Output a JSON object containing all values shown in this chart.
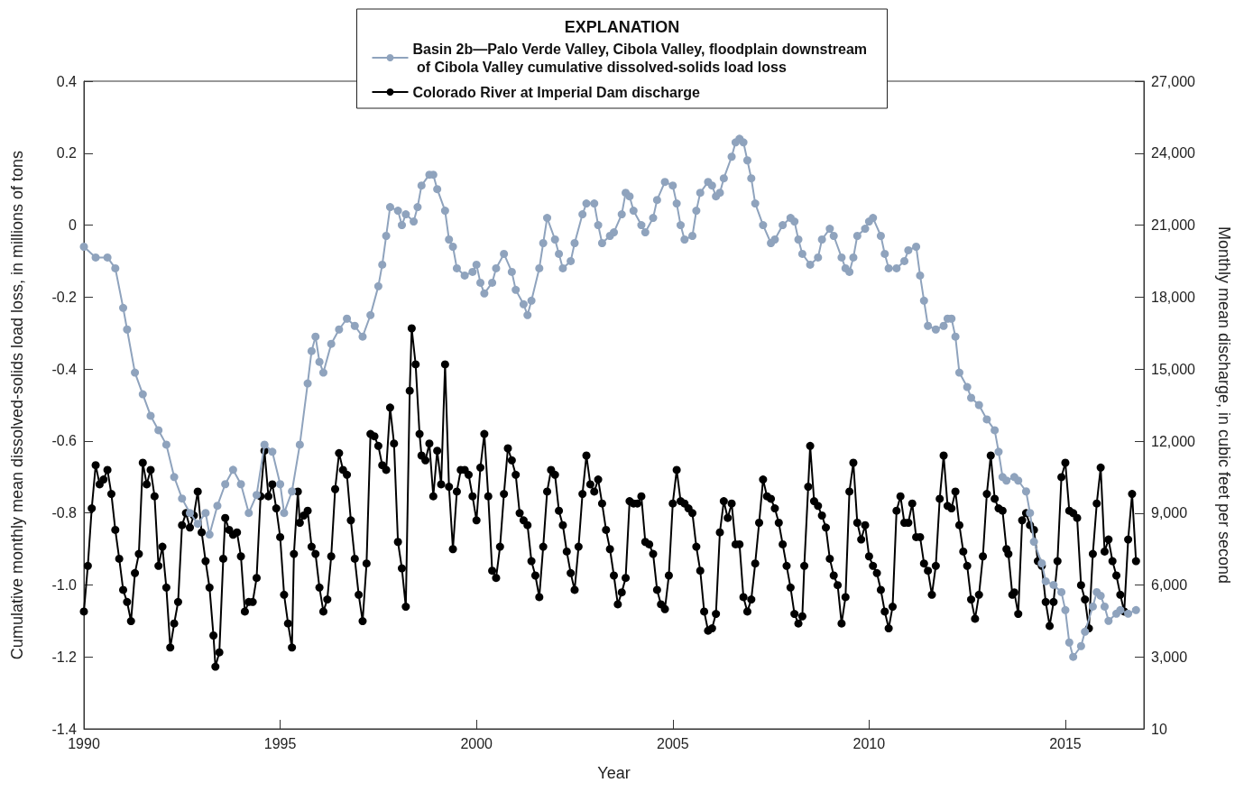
{
  "chart_data": {
    "type": "line",
    "xlabel": "Year",
    "ylabel": "Cumulative monthly mean dissolved-solids load loss, in millions of tons",
    "y2label": "Monthly mean discharge, in cubic feet per second",
    "legend_title": "EXPLANATION",
    "legend": "top",
    "grid": false,
    "marker": "circle",
    "line_style": "solid",
    "xlim": [
      1990,
      2017
    ],
    "xticks": [
      1990,
      1995,
      2000,
      2005,
      2010,
      2015
    ],
    "ylim": [
      -1.4,
      0.4
    ],
    "yticks": [
      -1.4,
      -1.2,
      {
        "value": -1,
        "label": "-1.0"
      },
      -0.8,
      -0.6,
      -0.4,
      -0.2,
      0,
      0.2,
      0.4
    ],
    "y2lim": [
      10,
      27000
    ],
    "y2ticks": [
      10,
      {
        "value": 3000,
        "label": "3,000"
      },
      {
        "value": 6000,
        "label": "6,000"
      },
      {
        "value": 9000,
        "label": "9,000"
      },
      {
        "value": 12000,
        "label": "12,000"
      },
      {
        "value": 15000,
        "label": "15,000"
      },
      {
        "value": 18000,
        "label": "18,000"
      },
      {
        "value": 21000,
        "label": "21,000"
      },
      {
        "value": 24000,
        "label": "24,000"
      },
      {
        "value": 27000,
        "label": "27,000"
      }
    ],
    "series": [
      {
        "name": "Basin 2b—Palo Verde Valley, Cibola Valley, floodplain downstream of Cibola Valley cumulative dissolved-solids load loss",
        "color": "#8fa3bd",
        "x": [
          1990.0,
          1990.3,
          1990.6,
          1990.8,
          1991.0,
          1991.1,
          1991.3,
          1991.5,
          1991.7,
          1991.9,
          1992.1,
          1992.3,
          1992.5,
          1992.7,
          1992.9,
          1993.1,
          1993.2,
          1993.4,
          1993.6,
          1993.8,
          1994.0,
          1994.2,
          1994.4,
          1994.6,
          1994.8,
          1995.0,
          1995.1,
          1995.3,
          1995.5,
          1995.7,
          1995.8,
          1995.9,
          1996.0,
          1996.1,
          1996.3,
          1996.5,
          1996.7,
          1996.9,
          1997.1,
          1997.3,
          1997.5,
          1997.6,
          1997.7,
          1997.8,
          1998.0,
          1998.1,
          1998.2,
          1998.4,
          1998.5,
          1998.6,
          1998.8,
          1998.9,
          1999.0,
          1999.2,
          1999.3,
          1999.4,
          1999.5,
          1999.7,
          1999.9,
          2000.0,
          2000.1,
          2000.2,
          2000.4,
          2000.5,
          2000.7,
          2000.9,
          2001.0,
          2001.2,
          2001.3,
          2001.4,
          2001.6,
          2001.7,
          2001.8,
          2002.0,
          2002.1,
          2002.2,
          2002.4,
          2002.5,
          2002.7,
          2002.8,
          2003.0,
          2003.1,
          2003.2,
          2003.4,
          2003.5,
          2003.7,
          2003.8,
          2003.9,
          2004.0,
          2004.2,
          2004.3,
          2004.5,
          2004.6,
          2004.8,
          2005.0,
          2005.1,
          2005.2,
          2005.3,
          2005.5,
          2005.6,
          2005.7,
          2005.9,
          2006.0,
          2006.1,
          2006.2,
          2006.3,
          2006.5,
          2006.6,
          2006.7,
          2006.8,
          2006.9,
          2007.0,
          2007.1,
          2007.3,
          2007.5,
          2007.6,
          2007.8,
          2008.0,
          2008.1,
          2008.2,
          2008.3,
          2008.5,
          2008.7,
          2008.8,
          2009.0,
          2009.1,
          2009.3,
          2009.4,
          2009.5,
          2009.6,
          2009.7,
          2009.9,
          2010.0,
          2010.1,
          2010.3,
          2010.4,
          2010.5,
          2010.7,
          2010.9,
          2011.0,
          2011.2,
          2011.3,
          2011.4,
          2011.5,
          2011.7,
          2011.9,
          2012.0,
          2012.1,
          2012.2,
          2012.3,
          2012.5,
          2012.6,
          2012.8,
          2013.0,
          2013.2,
          2013.3,
          2013.4,
          2013.5,
          2013.7,
          2013.8,
          2014.0,
          2014.1,
          2014.2,
          2014.4,
          2014.5,
          2014.7,
          2014.9,
          2015.0,
          2015.1,
          2015.2,
          2015.4,
          2015.5,
          2015.7,
          2015.8,
          2015.9,
          2016.0,
          2016.1,
          2016.3,
          2016.4,
          2016.6,
          2016.8
        ],
        "values": [
          -0.06,
          -0.09,
          -0.09,
          -0.12,
          -0.23,
          -0.29,
          -0.41,
          -0.47,
          -0.53,
          -0.57,
          -0.61,
          -0.7,
          -0.76,
          -0.8,
          -0.83,
          -0.8,
          -0.86,
          -0.78,
          -0.72,
          -0.68,
          -0.72,
          -0.8,
          -0.75,
          -0.61,
          -0.63,
          -0.72,
          -0.8,
          -0.74,
          -0.61,
          -0.44,
          -0.35,
          -0.31,
          -0.38,
          -0.41,
          -0.33,
          -0.29,
          -0.26,
          -0.28,
          -0.31,
          -0.25,
          -0.17,
          -0.11,
          -0.03,
          0.05,
          0.04,
          0.0,
          0.03,
          0.01,
          0.05,
          0.11,
          0.14,
          0.14,
          0.1,
          0.04,
          -0.04,
          -0.06,
          -0.12,
          -0.14,
          -0.13,
          -0.11,
          -0.16,
          -0.19,
          -0.16,
          -0.12,
          -0.08,
          -0.13,
          -0.18,
          -0.22,
          -0.25,
          -0.21,
          -0.12,
          -0.05,
          0.02,
          -0.04,
          -0.08,
          -0.12,
          -0.1,
          -0.05,
          0.03,
          0.06,
          0.06,
          0.0,
          -0.05,
          -0.03,
          -0.02,
          0.03,
          0.09,
          0.08,
          0.04,
          0.0,
          -0.02,
          0.02,
          0.07,
          0.12,
          0.11,
          0.06,
          0.0,
          -0.04,
          -0.03,
          0.04,
          0.09,
          0.12,
          0.11,
          0.08,
          0.09,
          0.13,
          0.19,
          0.23,
          0.24,
          0.23,
          0.18,
          0.13,
          0.06,
          0.0,
          -0.05,
          -0.04,
          0.0,
          0.02,
          0.01,
          -0.04,
          -0.08,
          -0.11,
          -0.09,
          -0.04,
          -0.01,
          -0.03,
          -0.09,
          -0.12,
          -0.13,
          -0.09,
          -0.03,
          -0.01,
          0.01,
          0.02,
          -0.03,
          -0.08,
          -0.12,
          -0.12,
          -0.1,
          -0.07,
          -0.06,
          -0.14,
          -0.21,
          -0.28,
          -0.29,
          -0.28,
          -0.26,
          -0.26,
          -0.31,
          -0.41,
          -0.45,
          -0.48,
          -0.5,
          -0.54,
          -0.57,
          -0.63,
          -0.7,
          -0.71,
          -0.7,
          -0.71,
          -0.74,
          -0.8,
          -0.88,
          -0.94,
          -0.99,
          -1.0,
          -1.02,
          -1.07,
          -1.16,
          -1.2,
          -1.17,
          -1.13,
          -1.06,
          -1.02,
          -1.03,
          -1.06,
          -1.1,
          -1.08,
          -1.07,
          -1.08,
          -1.07
        ]
      },
      {
        "name": "Colorado River at Imperial Dam discharge",
        "color": "#000000",
        "axis": "y2",
        "x": [
          1990.0,
          1990.1,
          1990.2,
          1990.3,
          1990.4,
          1990.5,
          1990.6,
          1990.7,
          1990.8,
          1990.9,
          1991.0,
          1991.1,
          1991.2,
          1991.3,
          1991.4,
          1991.5,
          1991.6,
          1991.7,
          1991.8,
          1991.9,
          1992.0,
          1992.1,
          1992.2,
          1992.3,
          1992.4,
          1992.5,
          1992.6,
          1992.7,
          1992.8,
          1992.9,
          1993.0,
          1993.1,
          1993.2,
          1993.3,
          1993.35,
          1993.45,
          1993.55,
          1993.6,
          1993.7,
          1993.8,
          1993.9,
          1994.0,
          1994.1,
          1994.2,
          1994.3,
          1994.4,
          1994.5,
          1994.6,
          1994.7,
          1994.8,
          1994.9,
          1995.0,
          1995.1,
          1995.2,
          1995.3,
          1995.35,
          1995.45,
          1995.5,
          1995.6,
          1995.7,
          1995.8,
          1995.9,
          1996.0,
          1996.1,
          1996.2,
          1996.3,
          1996.4,
          1996.5,
          1996.6,
          1996.7,
          1996.8,
          1996.9,
          1997.0,
          1997.1,
          1997.2,
          1997.3,
          1997.4,
          1997.5,
          1997.6,
          1997.7,
          1997.8,
          1997.9,
          1998.0,
          1998.1,
          1998.2,
          1998.3,
          1998.35,
          1998.45,
          1998.55,
          1998.6,
          1998.7,
          1998.8,
          1998.9,
          1999.0,
          1999.1,
          1999.2,
          1999.3,
          1999.4,
          1999.5,
          1999.6,
          1999.7,
          1999.8,
          1999.9,
          2000.0,
          2000.1,
          2000.2,
          2000.3,
          2000.4,
          2000.5,
          2000.6,
          2000.7,
          2000.8,
          2000.9,
          2001.0,
          2001.1,
          2001.2,
          2001.3,
          2001.4,
          2001.5,
          2001.6,
          2001.7,
          2001.8,
          2001.9,
          2002.0,
          2002.1,
          2002.2,
          2002.3,
          2002.4,
          2002.5,
          2002.6,
          2002.7,
          2002.8,
          2002.9,
          2003.0,
          2003.1,
          2003.2,
          2003.3,
          2003.4,
          2003.5,
          2003.6,
          2003.7,
          2003.8,
          2003.9,
          2004.0,
          2004.1,
          2004.2,
          2004.3,
          2004.4,
          2004.5,
          2004.6,
          2004.7,
          2004.8,
          2004.9,
          2005.0,
          2005.1,
          2005.2,
          2005.3,
          2005.4,
          2005.5,
          2005.6,
          2005.7,
          2005.8,
          2005.9,
          2006.0,
          2006.1,
          2006.2,
          2006.3,
          2006.4,
          2006.5,
          2006.6,
          2006.7,
          2006.8,
          2006.9,
          2007.0,
          2007.1,
          2007.2,
          2007.3,
          2007.4,
          2007.5,
          2007.6,
          2007.7,
          2007.8,
          2007.9,
          2008.0,
          2008.1,
          2008.2,
          2008.3,
          2008.35,
          2008.45,
          2008.5,
          2008.6,
          2008.7,
          2008.8,
          2008.9,
          2009.0,
          2009.1,
          2009.2,
          2009.3,
          2009.4,
          2009.5,
          2009.6,
          2009.7,
          2009.8,
          2009.9,
          2010.0,
          2010.1,
          2010.2,
          2010.3,
          2010.4,
          2010.5,
          2010.6,
          2010.7,
          2010.8,
          2010.9,
          2011.0,
          2011.1,
          2011.2,
          2011.3,
          2011.4,
          2011.5,
          2011.6,
          2011.7,
          2011.8,
          2011.9,
          2012.0,
          2012.1,
          2012.2,
          2012.3,
          2012.4,
          2012.5,
          2012.6,
          2012.7,
          2012.8,
          2012.9,
          2013.0,
          2013.1,
          2013.2,
          2013.3,
          2013.4,
          2013.5,
          2013.55,
          2013.65,
          2013.7,
          2013.8,
          2013.9,
          2014.0,
          2014.1,
          2014.2,
          2014.3,
          2014.4,
          2014.5,
          2014.6,
          2014.7,
          2014.8,
          2014.9,
          2015.0,
          2015.1,
          2015.2,
          2015.3,
          2015.4,
          2015.5,
          2015.6,
          2015.7,
          2015.8,
          2015.9,
          2016.0,
          2016.1,
          2016.2,
          2016.3,
          2016.4,
          2016.5,
          2016.6,
          2016.7,
          2016.8
        ],
        "values": [
          4900,
          6800,
          9200,
          11000,
          10200,
          10400,
          10800,
          9800,
          8300,
          7100,
          5800,
          5300,
          4500,
          6500,
          7300,
          11100,
          10200,
          10800,
          9700,
          6800,
          7600,
          5900,
          3400,
          4400,
          5300,
          8500,
          9000,
          8400,
          8900,
          9900,
          8200,
          7000,
          5900,
          3900,
          2600,
          3200,
          7100,
          8800,
          8300,
          8100,
          8200,
          7200,
          4900,
          5300,
          5300,
          6300,
          9700,
          11600,
          9700,
          10200,
          9200,
          8000,
          5600,
          4400,
          3400,
          7300,
          9900,
          8600,
          8900,
          9100,
          7600,
          7300,
          5900,
          4900,
          5400,
          7200,
          10000,
          11500,
          10800,
          10600,
          8700,
          7100,
          5600,
          4500,
          6900,
          12300,
          12200,
          11800,
          11000,
          10800,
          13400,
          11900,
          7800,
          6700,
          5100,
          14100,
          16700,
          15200,
          12300,
          11400,
          11200,
          11900,
          9700,
          11600,
          10200,
          15200,
          10100,
          7500,
          9900,
          10800,
          10800,
          10600,
          9700,
          8700,
          10900,
          12300,
          9700,
          6600,
          6300,
          7600,
          9800,
          11700,
          11200,
          10600,
          9000,
          8700,
          8500,
          7000,
          6400,
          5500,
          7600,
          9900,
          10800,
          10600,
          9100,
          8500,
          7400,
          6500,
          5800,
          7600,
          9800,
          11400,
          10200,
          9900,
          10400,
          9400,
          8300,
          7500,
          6400,
          5200,
          5700,
          6300,
          9500,
          9400,
          9400,
          9700,
          7800,
          7700,
          7300,
          5800,
          5200,
          5000,
          6400,
          9400,
          10800,
          9500,
          9400,
          9200,
          9000,
          7600,
          6600,
          4900,
          4100,
          4200,
          4800,
          8200,
          9500,
          8800,
          9400,
          7700,
          7700,
          5500,
          4900,
          5400,
          6900,
          8600,
          10400,
          9700,
          9600,
          9200,
          8600,
          7700,
          6800,
          5900,
          4800,
          4400,
          4700,
          6800,
          10100,
          11800,
          9500,
          9300,
          8900,
          8400,
          7100,
          6400,
          6000,
          4400,
          5500,
          9900,
          11100,
          8600,
          7900,
          8500,
          7200,
          6800,
          6500,
          5800,
          4900,
          4200,
          5100,
          9100,
          9700,
          8600,
          8600,
          9400,
          8000,
          8000,
          6900,
          6600,
          5600,
          6800,
          9600,
          11400,
          9300,
          9200,
          9900,
          8500,
          7400,
          6800,
          5400,
          4600,
          5600,
          7200,
          9800,
          11400,
          9600,
          9200,
          9100,
          7500,
          7300,
          5600,
          5700,
          4800,
          8700,
          9000,
          8500,
          8300,
          7000,
          6800,
          5300,
          4300,
          5300,
          7000,
          10500,
          11100,
          9100,
          9000,
          8800,
          6000,
          5400,
          4200,
          7300,
          9400,
          10900,
          7400,
          7900,
          7000,
          6400,
          5600,
          4900,
          7900,
          9800,
          7000
        ]
      }
    ]
  }
}
